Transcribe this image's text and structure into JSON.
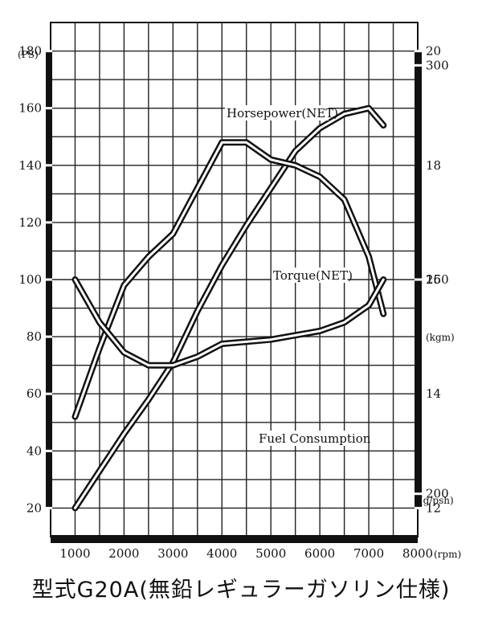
{
  "caption": "型式G20A(無鉛レギュラーガソリン仕様)",
  "chart_data": {
    "type": "line",
    "x_unit": "(rpm)",
    "x_ticks": [
      1000,
      2000,
      3000,
      4000,
      5000,
      6000,
      7000,
      8000
    ],
    "xlim": [
      500,
      8000
    ],
    "axes": {
      "power": {
        "unit": "(PS)",
        "ticks": [
          20,
          40,
          60,
          80,
          100,
          120,
          140,
          160,
          180
        ],
        "range": [
          10,
          190
        ],
        "side": "left"
      },
      "torque": {
        "unit": "(kgm)",
        "ticks": [
          12,
          14,
          16,
          18,
          20
        ],
        "range": [
          11.5,
          20.5
        ],
        "side": "right"
      },
      "fuel": {
        "unit": "(g/psh)",
        "ticks": [
          200,
          250,
          300
        ],
        "range": [
          190,
          310
        ],
        "side": "right"
      }
    },
    "grid": true,
    "series": [
      {
        "name": "Horsepower(NET)",
        "axis": "power",
        "x": [
          1000,
          1500,
          2000,
          2500,
          3000,
          3500,
          4000,
          4500,
          5000,
          5500,
          6000,
          6500,
          7000,
          7300
        ],
        "y": [
          20,
          33,
          46,
          58,
          71,
          89,
          105,
          119,
          132,
          145,
          153,
          158,
          160,
          154
        ]
      },
      {
        "name": "Torque(NET)",
        "axis": "torque",
        "x": [
          1000,
          1500,
          2000,
          2500,
          3000,
          3500,
          4000,
          4500,
          5000,
          5500,
          6000,
          6500,
          7000,
          7300
        ],
        "y": [
          13.6,
          14.8,
          15.9,
          16.4,
          16.8,
          17.6,
          18.4,
          18.4,
          18.1,
          18.0,
          17.8,
          17.4,
          16.4,
          15.4
        ]
      },
      {
        "name": "Fuel Consumption",
        "axis": "fuel",
        "x": [
          1000,
          1500,
          2000,
          2500,
          3000,
          3500,
          4000,
          5000,
          6000,
          6500,
          7000,
          7300
        ],
        "y": [
          250,
          240,
          233,
          230,
          230,
          232,
          235,
          236,
          238,
          240,
          244,
          250
        ]
      }
    ]
  }
}
